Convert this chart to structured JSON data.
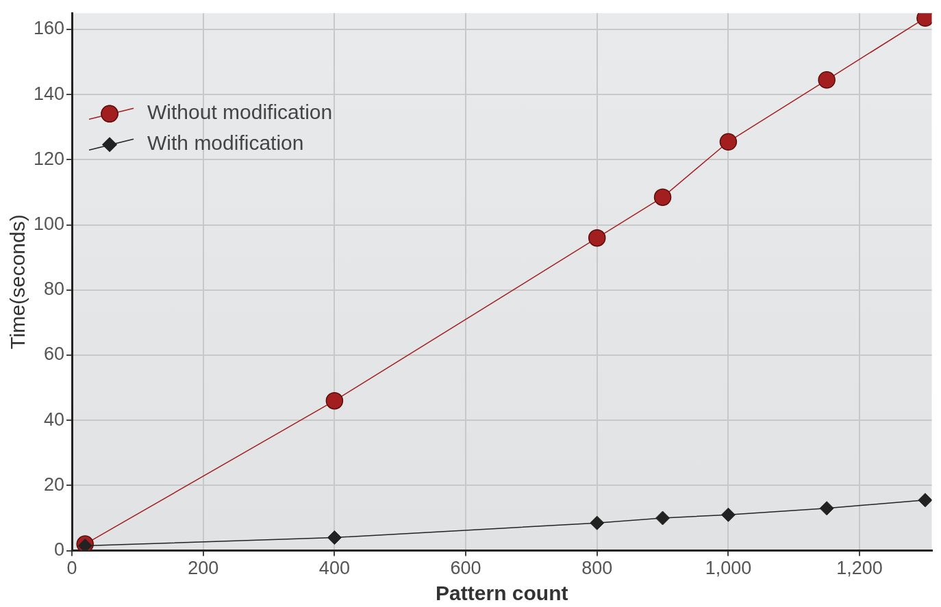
{
  "chart_data": {
    "type": "line",
    "xlabel": "Pattern count",
    "ylabel": "Time(seconds)",
    "xlim": [
      0,
      1310
    ],
    "xticks": [
      0,
      200,
      400,
      600,
      800,
      {
        "value": 1000,
        "label": "1,000"
      },
      {
        "value": 1200,
        "label": "1,200"
      }
    ],
    "ylim": [
      0,
      165
    ],
    "yticks": [
      0,
      20,
      40,
      60,
      80,
      100,
      120,
      140,
      160
    ],
    "grid": true,
    "legend": "top left",
    "series": [
      {
        "name": "Without modification",
        "color": "#a31f1f",
        "marker": "circle",
        "x": [
          20,
          400,
          800,
          900,
          1000,
          1150,
          1300
        ],
        "values": [
          2,
          46,
          96,
          108.5,
          125.5,
          144.5,
          163.5
        ]
      },
      {
        "name": "With modification",
        "color": "#222222",
        "marker": "diamond",
        "x": [
          20,
          400,
          800,
          900,
          1000,
          1150,
          1300
        ],
        "values": [
          1.5,
          4,
          8.5,
          10,
          11,
          13,
          15.5
        ]
      }
    ]
  }
}
